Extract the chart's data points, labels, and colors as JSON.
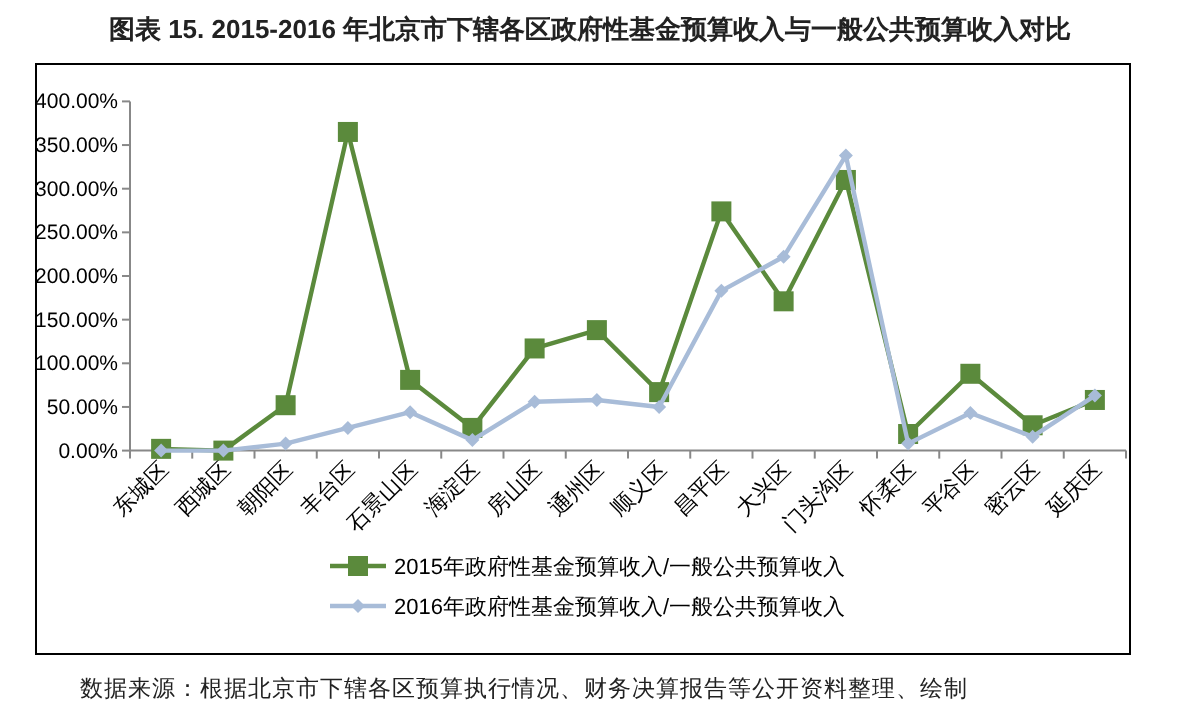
{
  "chart_data": {
    "type": "line",
    "title": "图表 15.   2015-2016 年北京市下辖各区政府性基金预算收入与一般公共预算收入对比",
    "categories": [
      "东城区",
      "西城区",
      "朝阳区",
      "丰台区",
      "石景山区",
      "海淀区",
      "房山区",
      "通州区",
      "顺义区",
      "昌平区",
      "大兴区",
      "门头沟区",
      "怀柔区",
      "平谷区",
      "密云区",
      "延庆区"
    ],
    "series": [
      {
        "name": "2015年政府性基金预算收入/一般公共预算收入",
        "color": "#5b8a3c",
        "marker": "square",
        "values": [
          2,
          0,
          52,
          365,
          81,
          26,
          117,
          138,
          67,
          274,
          171,
          310,
          19,
          88,
          29,
          58
        ]
      },
      {
        "name": "2016年政府性基金预算收入/一般公共预算收入",
        "color": "#a8bcd8",
        "marker": "diamond",
        "values": [
          0,
          0,
          8,
          26,
          44,
          12,
          56,
          58,
          50,
          183,
          222,
          338,
          8,
          43,
          16,
          63
        ]
      }
    ],
    "ylim": [
      0,
      400
    ],
    "yticks": [
      {
        "value": 0,
        "label": "0.00%"
      },
      {
        "value": 50,
        "label": "50.00%"
      },
      {
        "value": 100,
        "label": "100.00%"
      },
      {
        "value": 150,
        "label": "150.00%"
      },
      {
        "value": 200,
        "label": "200.00%"
      },
      {
        "value": 250,
        "label": "250.00%"
      },
      {
        "value": 300,
        "label": "300.00%"
      },
      {
        "value": 350,
        "label": "350.00%"
      },
      {
        "value": 400,
        "label": "400.00%"
      }
    ],
    "grid": false,
    "legend": "bottom",
    "annotations": [
      "数据来源：根据北京市下辖各区预算执行情况、财务决算报告等公开资料整理、绘制"
    ]
  }
}
